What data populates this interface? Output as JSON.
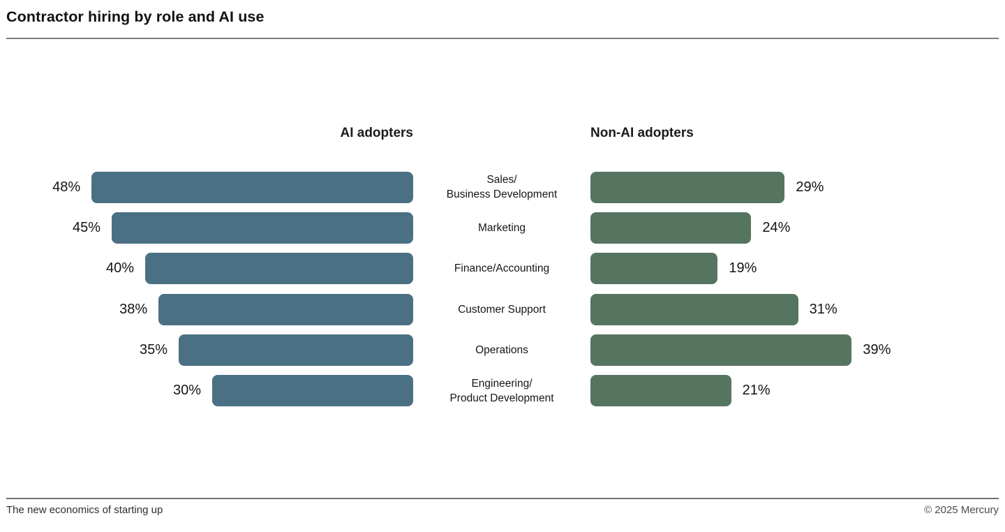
{
  "title": "Contractor hiring by role and AI use",
  "headers": {
    "left": "AI adopters",
    "right": "Non-AI adopters"
  },
  "colors": {
    "ai_bar": "#4B7083",
    "non_ai_bar": "#567560",
    "rule": "#7d7d7d",
    "text": "#161616"
  },
  "chart_data": {
    "type": "bar",
    "orientation": "horizontal-diverging",
    "unit": "%",
    "title": "Contractor hiring by role and AI use",
    "categories": [
      "Sales/Business Development",
      "Marketing",
      "Finance/Accounting",
      "Customer Support",
      "Operations",
      "Engineering/Product Development"
    ],
    "category_lines": [
      [
        "Sales/",
        "Business Development"
      ],
      [
        "Marketing"
      ],
      [
        "Finance/Accounting"
      ],
      [
        "Customer Support"
      ],
      [
        "Operations"
      ],
      [
        "Engineering/",
        "Product Development"
      ]
    ],
    "series": [
      {
        "name": "AI adopters",
        "values": [
          48,
          45,
          40,
          38,
          35,
          30
        ]
      },
      {
        "name": "Non-AI adopters",
        "values": [
          29,
          24,
          19,
          31,
          39,
          21
        ]
      }
    ],
    "value_labels_left": [
      "48%",
      "45%",
      "40%",
      "38%",
      "35%",
      "30%"
    ],
    "value_labels_right": [
      "29%",
      "24%",
      "19%",
      "31%",
      "39%",
      "21%"
    ],
    "xlim": [
      0,
      50
    ],
    "grid": false,
    "legend_position": "column-headers"
  },
  "footer": {
    "left": "The new economics of starting up",
    "right": "© 2025 Mercury"
  }
}
